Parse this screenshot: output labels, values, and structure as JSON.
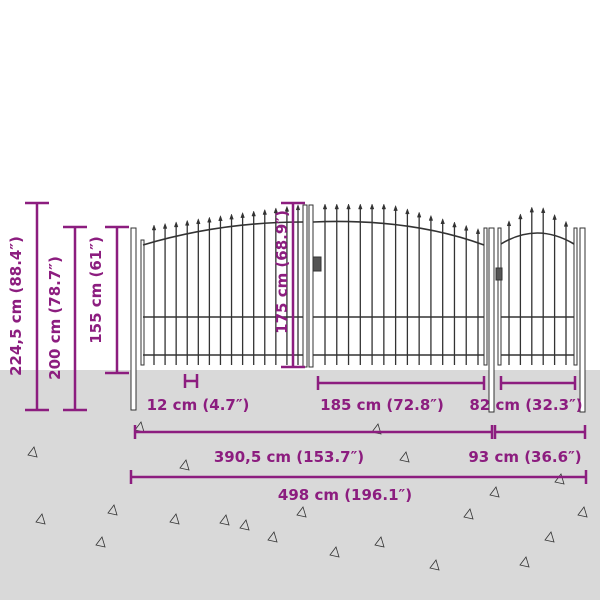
{
  "colors": {
    "dimension": "#8c1d7f",
    "ground": "#d9d9d9",
    "fence": "#333333"
  },
  "dimensions": {
    "total_height": "224,5 cm (88.4″)",
    "post_height": "200 cm (78.7″)",
    "side_height": "155 cm (61″)",
    "gate_height": "175 cm (68.9″)",
    "ground_clearance": "12 cm (4.7″)",
    "double_gate_leaf": "185 cm (72.8″)",
    "single_gate": "82 cm (32.3″)",
    "double_gate_width": "390,5 cm (153.7″)",
    "single_gate_width": "93 cm (36.6″)",
    "total_width": "498 cm (196.1″)"
  }
}
